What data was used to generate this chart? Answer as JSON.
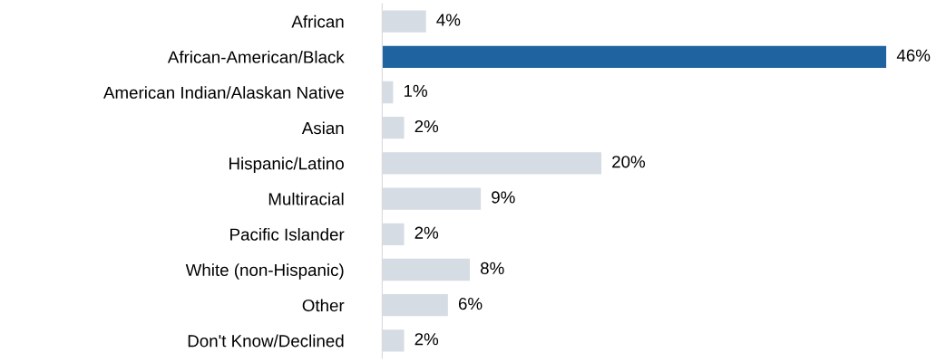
{
  "chart_data": {
    "type": "bar",
    "orientation": "horizontal",
    "categories": [
      "African",
      "African-American/Black",
      "American Indian/Alaskan Native",
      "Asian",
      "Hispanic/Latino",
      "Multiracial",
      "Pacific Islander",
      "White (non-Hispanic)",
      "Other",
      "Don't Know/Declined"
    ],
    "values": [
      4,
      46,
      1,
      2,
      20,
      9,
      2,
      8,
      6,
      2
    ],
    "colors": [
      "#d6dce4",
      "#1f64a0",
      "#d6dce4",
      "#d6dce4",
      "#d6dce4",
      "#d6dce4",
      "#d6dce4",
      "#d6dce4",
      "#d6dce4",
      "#d6dce4"
    ],
    "value_labels": [
      "4%",
      "46%",
      "1%",
      "2%",
      "20%",
      "9%",
      "2%",
      "8%",
      "6%",
      "2%"
    ],
    "grid": false,
    "legend": false
  }
}
